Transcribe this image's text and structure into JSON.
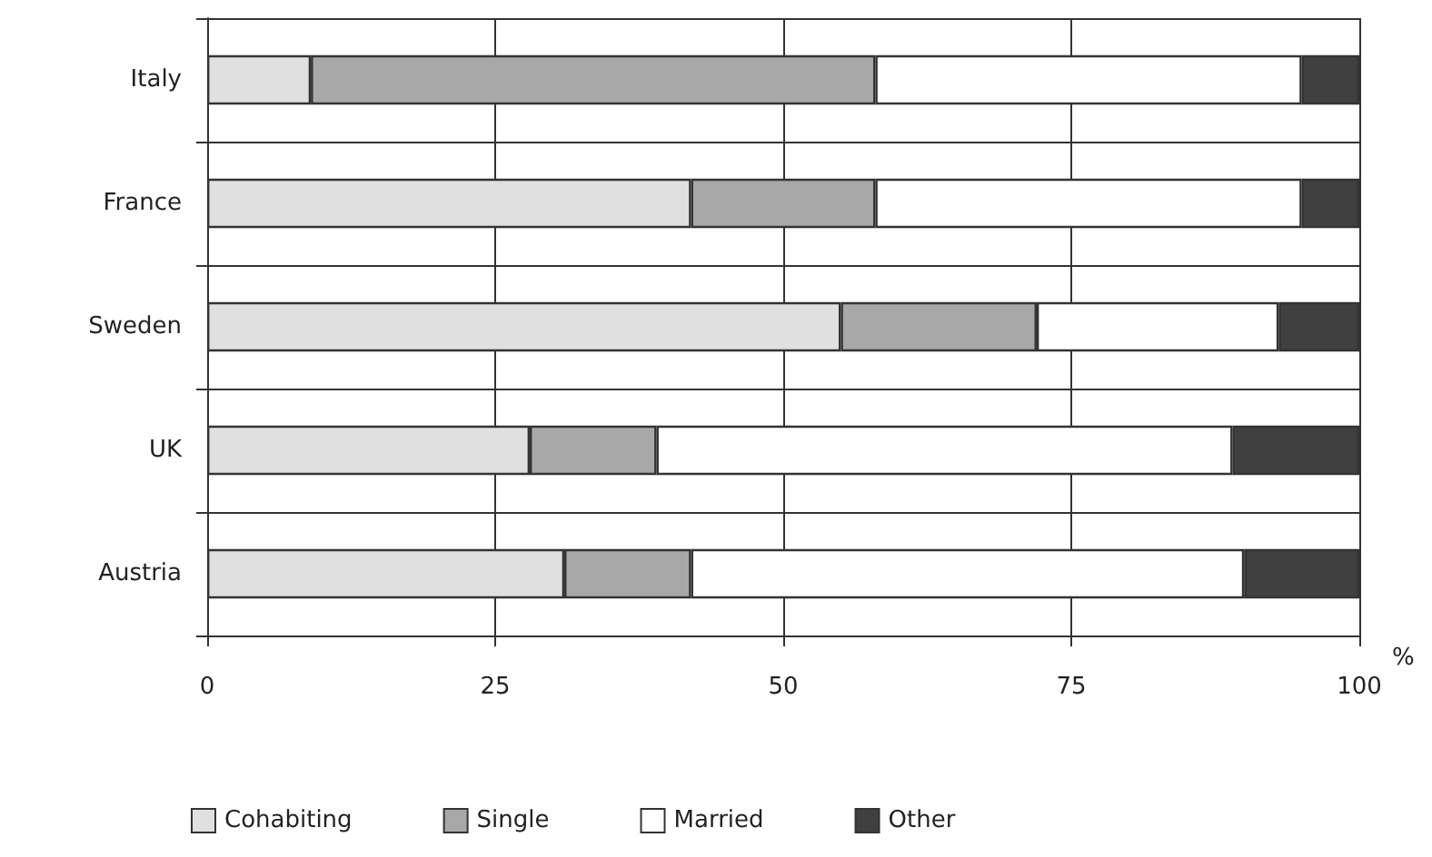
{
  "chart_data": {
    "type": "bar",
    "orientation": "horizontal",
    "stacked": true,
    "xlabel": "%",
    "categories": [
      "Italy",
      "France",
      "Sweden",
      "UK",
      "Austria"
    ],
    "series": [
      {
        "name": "Cohabiting",
        "color": "#e0e0e0",
        "values": [
          9,
          42,
          55,
          28,
          31
        ]
      },
      {
        "name": "Single",
        "color": "#a8a8a8",
        "values": [
          49,
          16,
          17,
          11,
          11
        ]
      },
      {
        "name": "Married",
        "color": "#ffffff",
        "values": [
          37,
          37,
          21,
          50,
          48
        ]
      },
      {
        "name": "Other",
        "color": "#404040",
        "values": [
          5,
          5,
          7,
          11,
          10
        ]
      }
    ],
    "xlim": [
      0,
      100
    ],
    "xticks": [
      0,
      25,
      50,
      75,
      100
    ],
    "grid": true,
    "legend": "bottom left"
  }
}
